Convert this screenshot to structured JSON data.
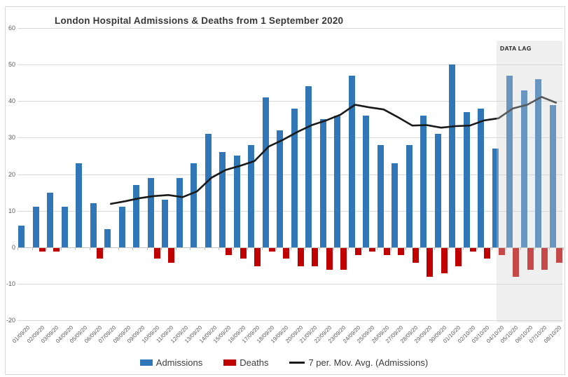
{
  "title": "London Hospital Admissions & Deaths from 1 September 2020",
  "annotations": {
    "data_lag_label": "DATA LAG"
  },
  "legend": {
    "admissions_label": "Admissions",
    "deaths_label": "Deaths",
    "mov_avg_label": "7 per. Mov. Avg. (Admissions)"
  },
  "colors": {
    "admissions": "#3177B8",
    "deaths": "#C00000",
    "mov_avg": "#1A1A1A",
    "gridline": "#D9D9D9",
    "axis_text": "#595959",
    "data_lag_overlay": "rgba(210,210,210,0.35)"
  },
  "chart_data": {
    "type": "bar",
    "title": "London Hospital Admissions & Deaths from 1 September 2020",
    "xlabel": "",
    "ylabel": "",
    "grid": true,
    "legend_position": "bottom",
    "y_axis": {
      "min": -20,
      "max": 60,
      "step": 10,
      "ticks": [
        60,
        50,
        40,
        30,
        20,
        10,
        0,
        -10,
        -20
      ]
    },
    "categories": [
      "01/09/20",
      "02/09/20",
      "03/09/20",
      "04/09/20",
      "05/09/20",
      "06/09/20",
      "07/09/20",
      "08/09/20",
      "09/09/20",
      "10/09/20",
      "11/09/20",
      "12/09/20",
      "13/09/20",
      "14/09/20",
      "15/09/20",
      "16/09/20",
      "17/09/20",
      "18/09/20",
      "19/09/20",
      "20/09/20",
      "21/09/20",
      "22/09/20",
      "23/09/20",
      "24/09/20",
      "25/09/20",
      "26/09/20",
      "27/09/20",
      "28/09/20",
      "29/09/20",
      "30/09/20",
      "01/10/20",
      "02/10/20",
      "03/10/20",
      "04/10/20",
      "05/10/20",
      "06/10/20",
      "07/10/20",
      "08/10/20"
    ],
    "series": [
      {
        "name": "Admissions",
        "type": "bar",
        "color": "#3177B8",
        "values": [
          6,
          11,
          15,
          11,
          23,
          12,
          5,
          11,
          17,
          19,
          13,
          19,
          23,
          31,
          26,
          25,
          28,
          41,
          32,
          38,
          44,
          35,
          36,
          47,
          36,
          28,
          23,
          28,
          36,
          31,
          50,
          37,
          38,
          27,
          47,
          43,
          46,
          39
        ]
      },
      {
        "name": "Deaths",
        "type": "bar",
        "color": "#C00000",
        "values": [
          0,
          -1,
          -1,
          0,
          0,
          -3,
          0,
          0,
          0,
          -3,
          -4,
          0,
          0,
          0,
          -2,
          -3,
          -5,
          -1,
          -3,
          -5,
          -5,
          -6,
          -6,
          -2,
          -1,
          -2,
          -2,
          -4,
          -8,
          -7,
          -5,
          -1,
          -3,
          -2,
          -8,
          -6,
          -6,
          -4
        ]
      },
      {
        "name": "7 per. Mov. Avg. (Admissions)",
        "type": "line",
        "color": "#1A1A1A",
        "derived_from": "Admissions",
        "window": 7
      }
    ],
    "data_lag_region": {
      "label": "DATA LAG",
      "start_category": "05/10/20",
      "end_category": "08/10/20"
    }
  }
}
